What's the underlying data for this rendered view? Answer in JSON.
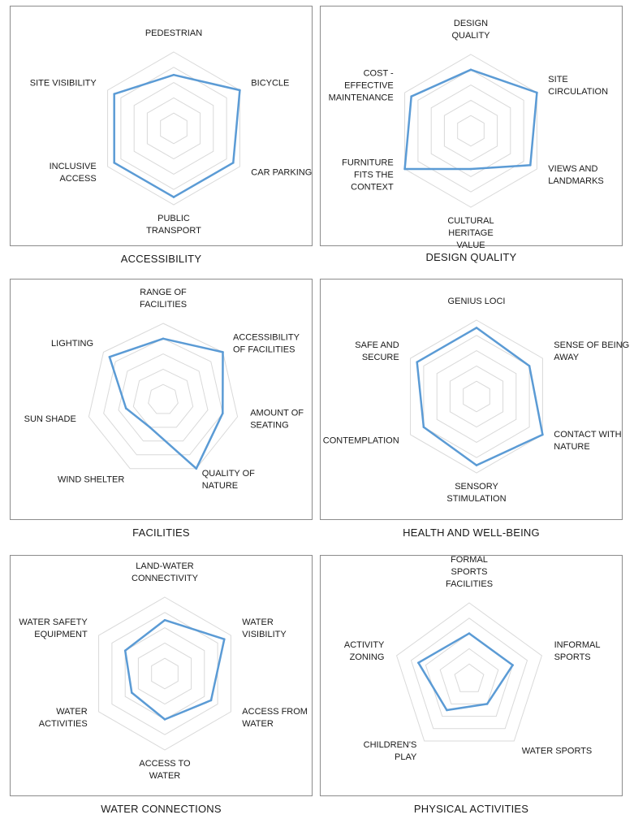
{
  "colors": {
    "series": "#5b9bd5",
    "grid": "#d9d9d9",
    "border": "#8c8c8c"
  },
  "chart_data": [
    {
      "type": "radar",
      "title": "ACCESSIBILITY",
      "ylim": [
        0,
        5
      ],
      "grid": true,
      "categories": [
        [
          "PEDESTRIAN"
        ],
        [
          "BICYCLE"
        ],
        [
          "CAR PARKING"
        ],
        [
          "PUBLIC",
          "TRANSPORT"
        ],
        [
          "INCLUSIVE",
          "ACCESS"
        ],
        [
          "SITE VISIBILITY"
        ]
      ],
      "series": [
        {
          "values": [
            3.5,
            5.0,
            4.5,
            4.5,
            4.5,
            4.5
          ]
        }
      ]
    },
    {
      "type": "radar",
      "title": "DESIGN QUALITY",
      "ylim": [
        0,
        5
      ],
      "grid": true,
      "categories": [
        [
          "DESIGN",
          "QUALITY"
        ],
        [
          "SITE",
          "CIRCULATION"
        ],
        [
          "VIEWS AND",
          "LANDMARKS"
        ],
        [
          "CULTURAL",
          "HERITAGE",
          "VALUE"
        ],
        [
          "FURNITURE",
          "FITS THE",
          "CONTEXT"
        ],
        [
          "COST -",
          "EFFECTIVE",
          "MAINTENANCE"
        ]
      ],
      "series": [
        {
          "values": [
            4.0,
            5.0,
            4.5,
            2.5,
            5.0,
            4.5
          ]
        }
      ]
    },
    {
      "type": "radar",
      "title": "FACILITIES",
      "ylim": [
        0,
        5
      ],
      "grid": true,
      "categories": [
        [
          "RANGE OF",
          "FACILITIES"
        ],
        [
          "ACCESSIBILITY",
          "OF FACILITIES"
        ],
        [
          "AMOUNT OF",
          "SEATING"
        ],
        [
          "QUALITY OF",
          "NATURE"
        ],
        [
          "WIND SHELTER"
        ],
        [
          "SUN SHADE"
        ],
        [
          "LIGHTING"
        ]
      ],
      "series": [
        {
          "values": [
            4.0,
            5.0,
            4.0,
            5.0,
            2.0,
            2.5,
            4.5
          ]
        }
      ]
    },
    {
      "type": "radar",
      "title": "HEALTH AND WELL-BEING",
      "ylim": [
        0,
        5
      ],
      "grid": true,
      "categories": [
        [
          "GENIUS LOCI"
        ],
        [
          "SENSE OF BEING",
          "AWAY"
        ],
        [
          "CONTACT WITH",
          "NATURE"
        ],
        [
          "SENSORY",
          "STIMULATION"
        ],
        [
          "CONTEMPLATION"
        ],
        [
          "SAFE AND",
          "SECURE"
        ]
      ],
      "series": [
        {
          "values": [
            4.5,
            4.0,
            5.0,
            4.5,
            4.0,
            4.5
          ]
        }
      ]
    },
    {
      "type": "radar",
      "title": "WATER CONNECTIONS",
      "ylim": [
        0,
        5
      ],
      "grid": true,
      "categories": [
        [
          "LAND-WATER",
          "CONNECTIVITY"
        ],
        [
          "WATER",
          "VISIBILITY"
        ],
        [
          "ACCESS FROM",
          "WATER"
        ],
        [
          "ACCESS TO",
          "WATER"
        ],
        [
          "WATER",
          "ACTIVITIES"
        ],
        [
          "WATER SAFETY",
          "EQUIPMENT"
        ]
      ],
      "series": [
        {
          "values": [
            3.5,
            4.5,
            3.5,
            3.0,
            2.5,
            3.0
          ]
        }
      ]
    },
    {
      "type": "radar",
      "title": "PHYSICAL ACTIVITIES",
      "ylim": [
        0,
        5
      ],
      "grid": true,
      "categories": [
        [
          "FORMAL",
          "SPORTS",
          "FACILITIES"
        ],
        [
          "INFORMAL",
          "SPORTS"
        ],
        [
          "WATER SPORTS"
        ],
        [
          "CHILDREN'S",
          "PLAY"
        ],
        [
          "ACTIVITY",
          "ZONING"
        ]
      ],
      "series": [
        {
          "values": [
            3.0,
            3.0,
            2.0,
            2.5,
            3.5
          ]
        }
      ]
    }
  ]
}
